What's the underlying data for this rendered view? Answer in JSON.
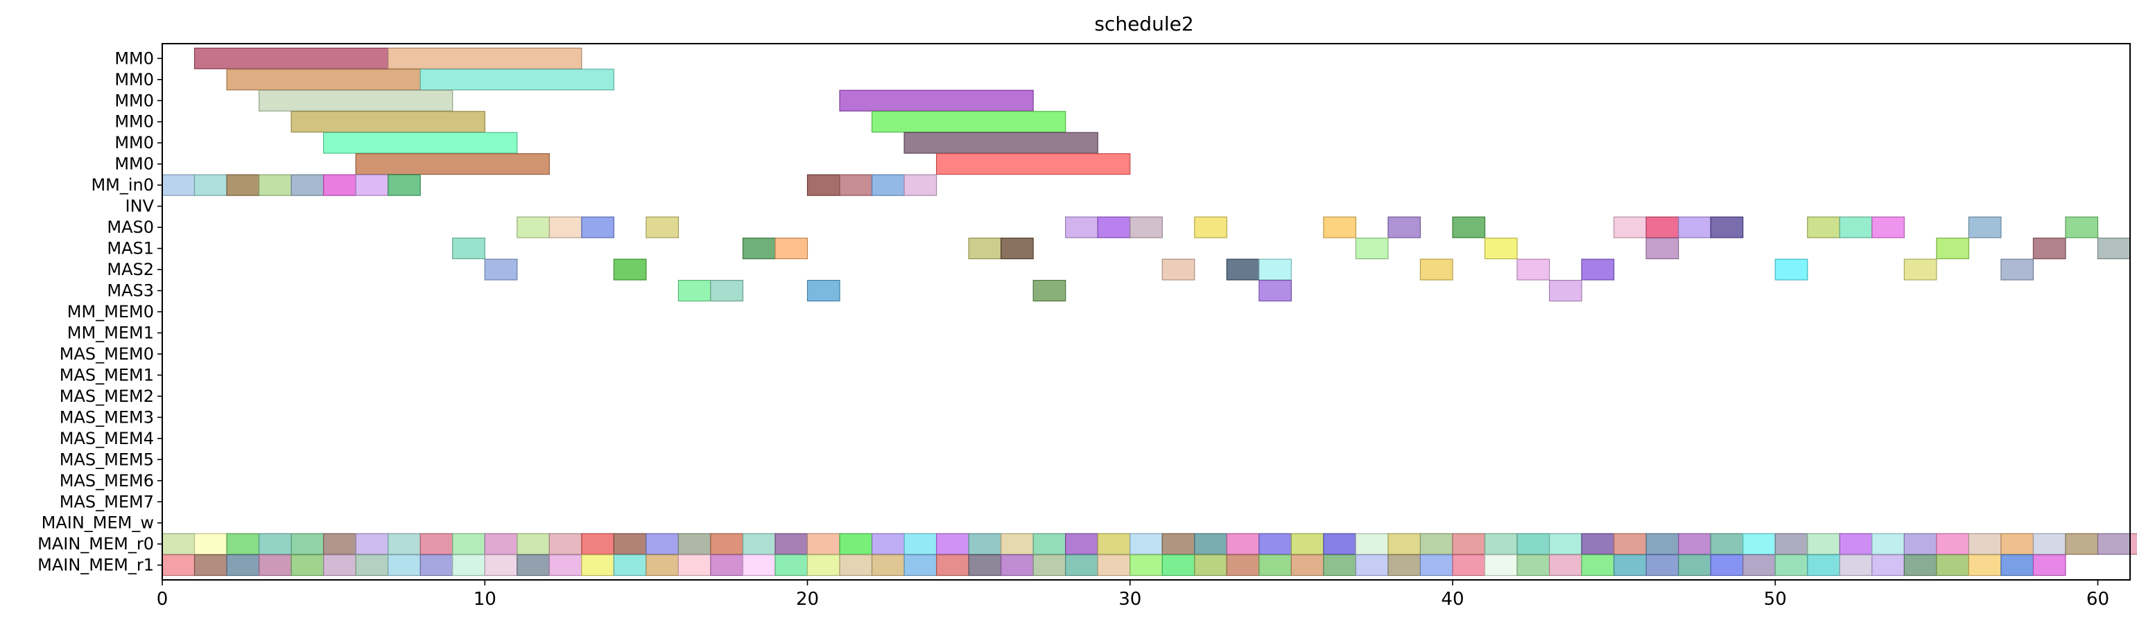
{
  "chart_data": {
    "type": "gantt",
    "title": "schedule2",
    "xlabel": "",
    "ylabel": "",
    "xlim": [
      0,
      61
    ],
    "grid": false,
    "legend": "none",
    "x_ticks": [
      0,
      10,
      20,
      30,
      40,
      50,
      60
    ],
    "rows": [
      "MM0",
      "MM0",
      "MM0",
      "MM0",
      "MM0",
      "MM0",
      "MM_in0",
      "INV",
      "MAS0",
      "MAS1",
      "MAS2",
      "MAS3",
      "MM_MEM0",
      "MM_MEM1",
      "MAS_MEM0",
      "MAS_MEM1",
      "MAS_MEM2",
      "MAS_MEM3",
      "MAS_MEM4",
      "MAS_MEM5",
      "MAS_MEM6",
      "MAS_MEM7",
      "MAIN_MEM_w",
      "MAIN_MEM_r0",
      "MAIN_MEM_r1"
    ],
    "tasks": [
      {
        "row": 0,
        "start": 1,
        "end": 7,
        "color": "#b5506e"
      },
      {
        "row": 0,
        "start": 7,
        "end": 13,
        "color": "#e8b48a"
      },
      {
        "row": 1,
        "start": 2,
        "end": 8,
        "color": "#d49a62"
      },
      {
        "row": 1,
        "start": 8,
        "end": 14,
        "color": "#7fe8d6"
      },
      {
        "row": 2,
        "start": 3,
        "end": 9,
        "color": "#c6d8b8"
      },
      {
        "row": 2,
        "start": 21,
        "end": 27,
        "color": "#a84fcc"
      },
      {
        "row": 3,
        "start": 4,
        "end": 10,
        "color": "#c7b460"
      },
      {
        "row": 3,
        "start": 22,
        "end": 28,
        "color": "#6cf25e"
      },
      {
        "row": 4,
        "start": 5,
        "end": 11,
        "color": "#6cfcb9"
      },
      {
        "row": 4,
        "start": 23,
        "end": 29,
        "color": "#7b5c74"
      },
      {
        "row": 5,
        "start": 6,
        "end": 12,
        "color": "#c47a4c"
      },
      {
        "row": 5,
        "start": 24,
        "end": 30,
        "color": "#ff6464"
      },
      {
        "row": 6,
        "start": 0,
        "end": 1,
        "color": "#a8c8ea"
      },
      {
        "row": 6,
        "start": 1,
        "end": 2,
        "color": "#9ad8d6"
      },
      {
        "row": 6,
        "start": 2,
        "end": 3,
        "color": "#9a7a4a"
      },
      {
        "row": 6,
        "start": 3,
        "end": 4,
        "color": "#b0d890"
      },
      {
        "row": 6,
        "start": 4,
        "end": 5,
        "color": "#8ea8c4"
      },
      {
        "row": 6,
        "start": 5,
        "end": 6,
        "color": "#e45cd8"
      },
      {
        "row": 6,
        "start": 6,
        "end": 7,
        "color": "#d4a8f2"
      },
      {
        "row": 6,
        "start": 7,
        "end": 8,
        "color": "#4cb870"
      },
      {
        "row": 6,
        "start": 20,
        "end": 21,
        "color": "#8e4a42"
      },
      {
        "row": 6,
        "start": 21,
        "end": 22,
        "color": "#b87078"
      },
      {
        "row": 6,
        "start": 22,
        "end": 23,
        "color": "#78a8e0"
      },
      {
        "row": 6,
        "start": 23,
        "end": 24,
        "color": "#deb4e0"
      },
      {
        "row": 8,
        "start": 11,
        "end": 12,
        "color": "#c8eaa0"
      },
      {
        "row": 8,
        "start": 12,
        "end": 13,
        "color": "#f2d4b8"
      },
      {
        "row": 8,
        "start": 13,
        "end": 14,
        "color": "#7890ea"
      },
      {
        "row": 8,
        "start": 15,
        "end": 16,
        "color": "#d8d078"
      },
      {
        "row": 8,
        "start": 28,
        "end": 29,
        "color": "#c8a0ea"
      },
      {
        "row": 8,
        "start": 29,
        "end": 30,
        "color": "#a860ea"
      },
      {
        "row": 8,
        "start": 30,
        "end": 31,
        "color": "#c8b0c0"
      },
      {
        "row": 8,
        "start": 32,
        "end": 33,
        "color": "#f2e060"
      },
      {
        "row": 8,
        "start": 36,
        "end": 37,
        "color": "#fcc860"
      },
      {
        "row": 8,
        "start": 38,
        "end": 39,
        "color": "#9878c8"
      },
      {
        "row": 8,
        "start": 40,
        "end": 41,
        "color": "#50a850"
      },
      {
        "row": 8,
        "start": 45,
        "end": 46,
        "color": "#f2c0d8"
      },
      {
        "row": 8,
        "start": 46,
        "end": 47,
        "color": "#ea4878"
      },
      {
        "row": 8,
        "start": 47,
        "end": 48,
        "color": "#b89cf2"
      },
      {
        "row": 8,
        "start": 48,
        "end": 49,
        "color": "#584898"
      },
      {
        "row": 8,
        "start": 51,
        "end": 52,
        "color": "#c0d870"
      },
      {
        "row": 8,
        "start": 52,
        "end": 53,
        "color": "#7ce8c0"
      },
      {
        "row": 8,
        "start": 53,
        "end": 54,
        "color": "#ea78ea"
      },
      {
        "row": 8,
        "start": 56,
        "end": 57,
        "color": "#88b0d0"
      },
      {
        "row": 8,
        "start": 59,
        "end": 60,
        "color": "#78d078"
      },
      {
        "row": 9,
        "start": 9,
        "end": 10,
        "color": "#80dcc0"
      },
      {
        "row": 9,
        "start": 18,
        "end": 19,
        "color": "#4c9c58"
      },
      {
        "row": 9,
        "start": 19,
        "end": 20,
        "color": "#fcb070"
      },
      {
        "row": 9,
        "start": 25,
        "end": 26,
        "color": "#c0c070"
      },
      {
        "row": 9,
        "start": 26,
        "end": 27,
        "color": "#6c5038"
      },
      {
        "row": 9,
        "start": 37,
        "end": 38,
        "color": "#b0f2a0"
      },
      {
        "row": 9,
        "start": 41,
        "end": 42,
        "color": "#f2f060"
      },
      {
        "row": 9,
        "start": 46,
        "end": 47,
        "color": "#b888c0"
      },
      {
        "row": 9,
        "start": 55,
        "end": 56,
        "color": "#a8ea60"
      },
      {
        "row": 9,
        "start": 58,
        "end": 59,
        "color": "#a06470"
      },
      {
        "row": 9,
        "start": 60,
        "end": 61,
        "color": "#a0b0b0"
      },
      {
        "row": 10,
        "start": 10,
        "end": 11,
        "color": "#90a8e0"
      },
      {
        "row": 10,
        "start": 14,
        "end": 15,
        "color": "#50c040"
      },
      {
        "row": 10,
        "start": 31,
        "end": 32,
        "color": "#e8c0a8"
      },
      {
        "row": 10,
        "start": 33,
        "end": 34,
        "color": "#405870"
      },
      {
        "row": 10,
        "start": 34,
        "end": 35,
        "color": "#a8f2f2"
      },
      {
        "row": 10,
        "start": 39,
        "end": 40,
        "color": "#f2d060"
      },
      {
        "row": 10,
        "start": 42,
        "end": 43,
        "color": "#eab0ea"
      },
      {
        "row": 10,
        "start": 44,
        "end": 45,
        "color": "#9060e0"
      },
      {
        "row": 10,
        "start": 50,
        "end": 51,
        "color": "#60f2fc"
      },
      {
        "row": 10,
        "start": 54,
        "end": 55,
        "color": "#e0e080"
      },
      {
        "row": 10,
        "start": 57,
        "end": 58,
        "color": "#98a8c8"
      },
      {
        "row": 11,
        "start": 16,
        "end": 17,
        "color": "#78f29c"
      },
      {
        "row": 11,
        "start": 17,
        "end": 18,
        "color": "#90d4c0"
      },
      {
        "row": 11,
        "start": 20,
        "end": 21,
        "color": "#5aa8d8"
      },
      {
        "row": 11,
        "start": 27,
        "end": 28,
        "color": "#6c9c58"
      },
      {
        "row": 11,
        "start": 34,
        "end": 35,
        "color": "#a070e0"
      },
      {
        "row": 11,
        "start": 43,
        "end": 44,
        "color": "#d8a8ea"
      }
    ],
    "main_mem_r0_colors": [
      "#c8e0a0",
      "#fcfcb8",
      "#6ad468",
      "#78c8b8",
      "#74c890",
      "#9c7c70",
      "#c0aae8",
      "#a0d4d0",
      "#e07c94",
      "#a0e8a8",
      "#d894c8",
      "#c0e09c",
      "#e0a8b0",
      "#ee6060",
      "#9c6454",
      "#8c8ce8",
      "#98a890",
      "#d47858",
      "#98d8c8",
      "#8e62a4",
      "#f2b090",
      "#58ea58",
      "#ae98f0",
      "#78e4f2",
      "#c478f2",
      "#78bab8",
      "#e0d09c",
      "#78d4a8",
      "#9c5cc8",
      "#d4d060",
      "#b0d8f0",
      "#9c7c60",
      "#58989c",
      "#ea78c0",
      "#7870e8",
      "#c8d860",
      "#6860e0",
      "#d8f2d8",
      "#d8d070",
      "#a8c890",
      "#e08888",
      "#98d8b8",
      "#68d0b8",
      "#98e8d4",
      "#7858a8",
      "#d88878",
      "#6890b0",
      "#b070c8",
      "#6ab8a4",
      "#78f2f2",
      "#9898b0",
      "#b0e8c0",
      "#c070f2",
      "#b0eaea",
      "#a898e0",
      "#f288c8",
      "#e0c8b8",
      "#eab070",
      "#c8d0e0",
      "#b09870",
      "#a890b8",
      "#ea98b0",
      "#78d0a0",
      "#c0a8e0"
    ],
    "main_mem_r1_colors": [
      "#f28890",
      "#a07060",
      "#6888a0",
      "#c080a8",
      "#88c870",
      "#c8a8c8",
      "#a0c4b0",
      "#a0d8e8",
      "#9090d8",
      "#c8f2e0",
      "#eacce0",
      "#788898",
      "#e8a8e0",
      "#f2f270",
      "#78e4d8",
      "#d8b070",
      "#fcc8d8",
      "#c878c8",
      "#fcd0fc",
      "#70e8a0",
      "#e4f290",
      "#e0c8a0",
      "#d8b878",
      "#78b8ea",
      "#e07070",
      "#706880",
      "#b070c8",
      "#a8c098",
      "#68b8a8",
      "#e8c8a0",
      "#98f270",
      "#58ea78",
      "#a8c860",
      "#c88060",
      "#80d070",
      "#d89c70",
      "#70b070",
      "#b8c0f2",
      "#a89c78",
      "#8ca8f0",
      "#f08098",
      "#e8f8e8",
      "#90d090",
      "#e8a8c0",
      "#70e878",
      "#58b0c0",
      "#7088c8",
      "#60b0a0",
      "#6878f0",
      "#a090b8",
      "#80d8a8",
      "#60d8d8",
      "#d0c8e0",
      "#c8b0f2",
      "#6c9878",
      "#98c060",
      "#f8d070",
      "#5888e0",
      "#e068e0"
    ]
  }
}
